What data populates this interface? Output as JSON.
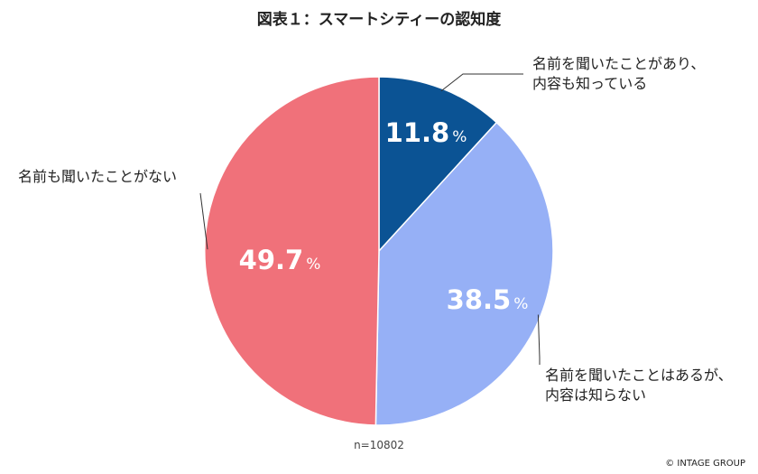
{
  "chart_data": {
    "type": "pie",
    "title": "図表１：スマートシティーの認知度",
    "unit": "%",
    "categories": [
      "名前を聞いたことがあり、内容も知っている",
      "名前を聞いたことはあるが、内容は知らない",
      "名前も聞いたことがない"
    ],
    "category_lines": [
      [
        "名前を聞いたことがあり、",
        "内容も知っている"
      ],
      [
        "名前を聞いたことはあるが、",
        "内容は知らない"
      ],
      [
        "名前も聞いたことがない"
      ]
    ],
    "values": [
      11.8,
      38.5,
      49.7
    ],
    "value_labels": [
      "11.8",
      "38.5",
      "49.7"
    ],
    "colors": [
      "#0B5394",
      "#96B0F6",
      "#F0717A"
    ],
    "start_angle": "12 o'clock, clockwise",
    "legend": "none (direct labels with leader lines)",
    "note": "n=10802"
  },
  "credit": "© INTAGE GROUP"
}
